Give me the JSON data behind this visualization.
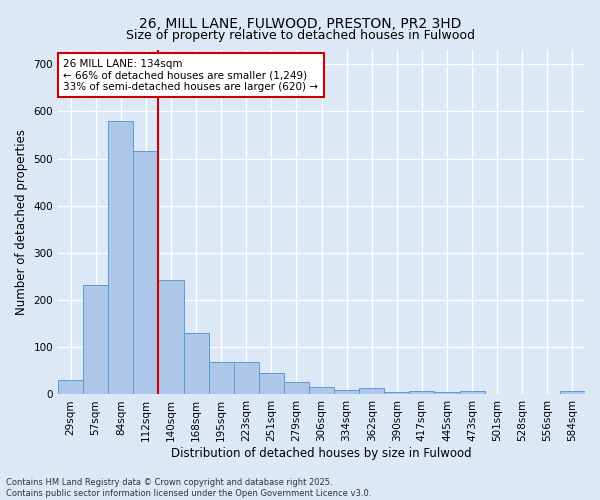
{
  "title_line1": "26, MILL LANE, FULWOOD, PRESTON, PR2 3HD",
  "title_line2": "Size of property relative to detached houses in Fulwood",
  "xlabel": "Distribution of detached houses by size in Fulwood",
  "ylabel": "Number of detached properties",
  "categories": [
    "29sqm",
    "57sqm",
    "84sqm",
    "112sqm",
    "140sqm",
    "168sqm",
    "195sqm",
    "223sqm",
    "251sqm",
    "279sqm",
    "306sqm",
    "334sqm",
    "362sqm",
    "390sqm",
    "417sqm",
    "445sqm",
    "473sqm",
    "501sqm",
    "528sqm",
    "556sqm",
    "584sqm"
  ],
  "values": [
    30,
    232,
    580,
    515,
    242,
    130,
    68,
    68,
    45,
    27,
    15,
    10,
    13,
    5,
    7,
    5,
    8,
    0,
    0,
    0,
    8
  ],
  "bar_color": "#aec6e8",
  "bar_edge_color": "#5b9bd5",
  "vline_x": 3.5,
  "vline_color": "#cc0000",
  "annotation_text": "26 MILL LANE: 134sqm\n← 66% of detached houses are smaller (1,249)\n33% of semi-detached houses are larger (620) →",
  "annotation_box_color": "#ffffff",
  "annotation_box_edge": "#cc0000",
  "bg_color": "#dce8f5",
  "plot_bg_color": "#dce8f5",
  "grid_color": "#ffffff",
  "footnote": "Contains HM Land Registry data © Crown copyright and database right 2025.\nContains public sector information licensed under the Open Government Licence v3.0.",
  "ylim": [
    0,
    730
  ],
  "yticks": [
    0,
    100,
    200,
    300,
    400,
    500,
    600,
    700
  ],
  "title1_fontsize": 10,
  "title2_fontsize": 9,
  "xlabel_fontsize": 8.5,
  "ylabel_fontsize": 8.5,
  "tick_fontsize": 7.5,
  "annot_fontsize": 7.5,
  "footnote_fontsize": 6.0
}
